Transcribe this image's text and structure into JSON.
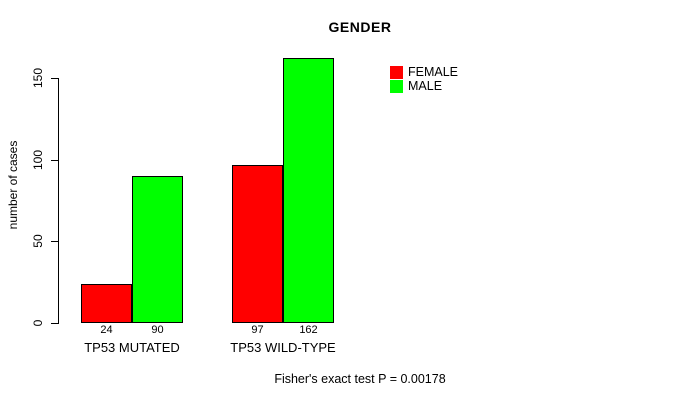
{
  "chart_data": {
    "type": "bar",
    "title": "GENDER",
    "xlabel": "",
    "ylabel": "number of cases",
    "categories": [
      "TP53 MUTATED",
      "TP53 WILD-TYPE"
    ],
    "series": [
      {
        "name": "FEMALE",
        "color": "#ff0000",
        "values": [
          24,
          97
        ]
      },
      {
        "name": "MALE",
        "color": "#00ff00",
        "values": [
          90,
          162
        ]
      }
    ],
    "yticks": [
      0,
      50,
      100,
      150
    ],
    "ylim": [
      0,
      162
    ],
    "bar_value_labels": [
      [
        24,
        90
      ],
      [
        97,
        162
      ]
    ],
    "legend_position": "top-right-inside",
    "grid": false,
    "annotation": "Fisher's exact test P = 0.00178"
  },
  "colors": {
    "female": "#ff0000",
    "male": "#00ff00",
    "axis": "#000000",
    "background": "#ffffff"
  }
}
